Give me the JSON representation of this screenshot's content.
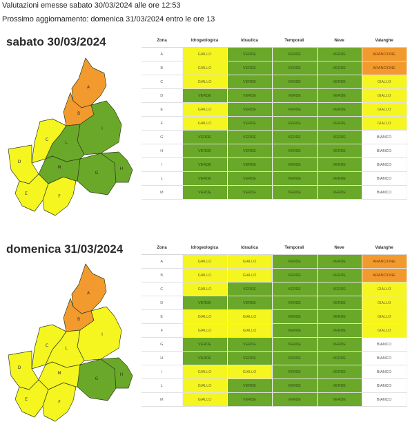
{
  "header": {
    "line1": "Valutazioni emesse sabato 30/03/2024 alle ore 12:53",
    "line2": "Prossimo aggiornamento: domenica 31/03/2024 entro le ore 13"
  },
  "columns": [
    "Zona",
    "Idrogeologica",
    "Idraulica",
    "Temporali",
    "Neve",
    "Valanghe"
  ],
  "colors": {
    "GIALLO": "#f5f51f",
    "VERDE": "#6aa829",
    "ARANCIONE": "#f29a2e",
    "BIANCO": "#ffffff"
  },
  "days": [
    {
      "title": "sabato 30/03/2024",
      "rows": [
        {
          "zona": "A",
          "values": [
            "GIALLO",
            "VERDE",
            "VERDE",
            "VERDE",
            "ARANCIONE"
          ]
        },
        {
          "zona": "B",
          "values": [
            "GIALLO",
            "VERDE",
            "VERDE",
            "VERDE",
            "ARANCIONE"
          ]
        },
        {
          "zona": "C",
          "values": [
            "GIALLO",
            "VERDE",
            "VERDE",
            "VERDE",
            "GIALLO"
          ]
        },
        {
          "zona": "D",
          "values": [
            "VERDE",
            "VERDE",
            "VERDE",
            "VERDE",
            "GIALLO"
          ]
        },
        {
          "zona": "E",
          "values": [
            "GIALLO",
            "VERDE",
            "VERDE",
            "VERDE",
            "GIALLO"
          ]
        },
        {
          "zona": "F",
          "values": [
            "GIALLO",
            "VERDE",
            "VERDE",
            "VERDE",
            "GIALLO"
          ]
        },
        {
          "zona": "G",
          "values": [
            "VERDE",
            "VERDE",
            "VERDE",
            "VERDE",
            "BIANCO"
          ]
        },
        {
          "zona": "H",
          "values": [
            "VERDE",
            "VERDE",
            "VERDE",
            "VERDE",
            "BIANCO"
          ]
        },
        {
          "zona": "I",
          "values": [
            "VERDE",
            "VERDE",
            "VERDE",
            "VERDE",
            "BIANCO"
          ]
        },
        {
          "zona": "L",
          "values": [
            "VERDE",
            "VERDE",
            "VERDE",
            "VERDE",
            "BIANCO"
          ]
        },
        {
          "zona": "M",
          "values": [
            "VERDE",
            "VERDE",
            "VERDE",
            "VERDE",
            "BIANCO"
          ]
        }
      ],
      "map_zones": {
        "A": "ARANCIONE",
        "B": "ARANCIONE",
        "C": "GIALLO",
        "D": "GIALLO",
        "E": "GIALLO",
        "F": "GIALLO",
        "G": "VERDE",
        "H": "VERDE",
        "I": "VERDE",
        "L": "VERDE",
        "M": "VERDE"
      }
    },
    {
      "title": "domenica 31/03/2024",
      "rows": [
        {
          "zona": "A",
          "values": [
            "GIALLO",
            "GIALLO",
            "VERDE",
            "VERDE",
            "ARANCIONE"
          ]
        },
        {
          "zona": "B",
          "values": [
            "GIALLO",
            "GIALLO",
            "VERDE",
            "VERDE",
            "ARANCIONE"
          ]
        },
        {
          "zona": "C",
          "values": [
            "GIALLO",
            "VERDE",
            "VERDE",
            "VERDE",
            "GIALLO"
          ]
        },
        {
          "zona": "D",
          "values": [
            "VERDE",
            "VERDE",
            "VERDE",
            "VERDE",
            "GIALLO"
          ]
        },
        {
          "zona": "E",
          "values": [
            "GIALLO",
            "GIALLO",
            "VERDE",
            "VERDE",
            "GIALLO"
          ]
        },
        {
          "zona": "F",
          "values": [
            "GIALLO",
            "GIALLO",
            "VERDE",
            "VERDE",
            "GIALLO"
          ]
        },
        {
          "zona": "G",
          "values": [
            "VERDE",
            "VERDE",
            "VERDE",
            "VERDE",
            "BIANCO"
          ]
        },
        {
          "zona": "H",
          "values": [
            "VERDE",
            "VERDE",
            "VERDE",
            "VERDE",
            "BIANCO"
          ]
        },
        {
          "zona": "I",
          "values": [
            "GIALLO",
            "GIALLO",
            "VERDE",
            "VERDE",
            "BIANCO"
          ]
        },
        {
          "zona": "L",
          "values": [
            "GIALLO",
            "VERDE",
            "VERDE",
            "VERDE",
            "BIANCO"
          ]
        },
        {
          "zona": "M",
          "values": [
            "GIALLO",
            "VERDE",
            "VERDE",
            "VERDE",
            "BIANCO"
          ]
        }
      ],
      "map_zones": {
        "A": "ARANCIONE",
        "B": "ARANCIONE",
        "C": "GIALLO",
        "D": "GIALLO",
        "E": "GIALLO",
        "F": "GIALLO",
        "G": "VERDE",
        "H": "VERDE",
        "I": "GIALLO",
        "L": "GIALLO",
        "M": "GIALLO"
      }
    }
  ]
}
